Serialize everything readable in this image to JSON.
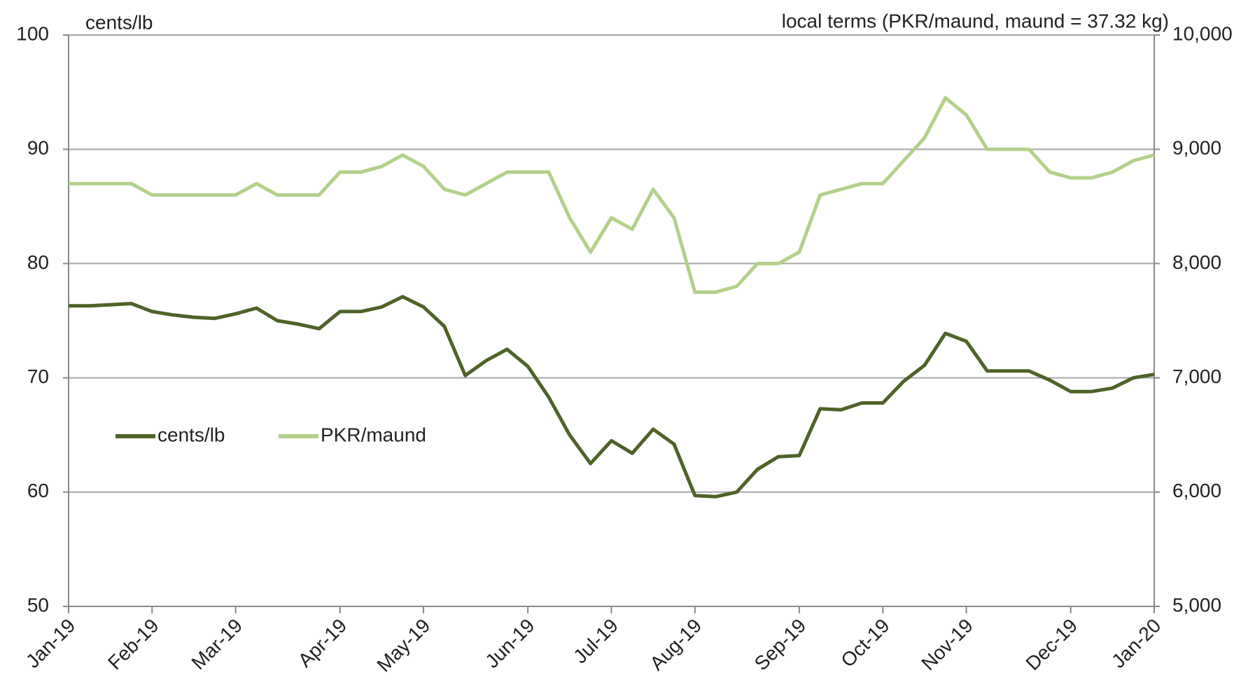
{
  "chart_data": {
    "type": "line",
    "left_axis_title": "cents/lb",
    "right_axis_title": "local terms (PKR/maund, maund = 37.32 kg)",
    "categories": [
      "Jan-19",
      null,
      null,
      null,
      "Feb-19",
      null,
      null,
      null,
      "Mar-19",
      null,
      null,
      null,
      null,
      "Apr-19",
      null,
      null,
      null,
      "May-19",
      null,
      null,
      null,
      null,
      "Jun-19",
      null,
      null,
      null,
      "Jul-19",
      null,
      null,
      null,
      "Aug-19",
      null,
      null,
      null,
      null,
      "Sep-19",
      null,
      null,
      null,
      "Oct-19",
      null,
      null,
      null,
      "Nov-19",
      null,
      null,
      null,
      null,
      "Dec-19",
      null,
      null,
      null,
      "Jan-20"
    ],
    "series": [
      {
        "name": "cents/lb",
        "color": "#4f6228",
        "axis": "y",
        "values": [
          76.3,
          76.3,
          76.4,
          76.5,
          75.8,
          75.5,
          75.3,
          75.2,
          75.6,
          76.1,
          75.0,
          74.7,
          74.3,
          75.8,
          75.8,
          76.2,
          77.1,
          76.2,
          74.5,
          70.2,
          71.5,
          72.5,
          71.0,
          68.3,
          65.0,
          62.5,
          64.5,
          63.4,
          65.5,
          64.2,
          59.7,
          59.6,
          60.0,
          62.0,
          63.1,
          63.2,
          67.3,
          67.2,
          67.8,
          67.8,
          69.7,
          71.1,
          73.9,
          73.2,
          70.6,
          70.6,
          70.6,
          69.8,
          68.8,
          68.8,
          69.1,
          70.0,
          70.3
        ]
      },
      {
        "name": "PKR/maund",
        "color": "#b3d08a",
        "axis": "y2",
        "values": [
          8700,
          8700,
          8700,
          8700,
          8600,
          8600,
          8600,
          8600,
          8600,
          8700,
          8600,
          8600,
          8600,
          8800,
          8800,
          8850,
          8950,
          8850,
          8650,
          8600,
          8700,
          8800,
          8800,
          8800,
          8400,
          8100,
          8400,
          8300,
          8650,
          8400,
          7750,
          7750,
          7800,
          8000,
          8000,
          8100,
          8600,
          8650,
          8700,
          8700,
          8900,
          9100,
          9450,
          9300,
          9000,
          9000,
          9000,
          8800,
          8750,
          8750,
          8800,
          8900,
          8950
        ]
      }
    ],
    "ylim": [
      50,
      100
    ],
    "yticks": [
      50,
      60,
      70,
      80,
      90,
      100
    ],
    "y2lim": [
      5000,
      10000
    ],
    "y2ticks": [
      {
        "value": 5000,
        "label": "5,000"
      },
      {
        "value": 6000,
        "label": "6,000"
      },
      {
        "value": 7000,
        "label": "7,000"
      },
      {
        "value": 8000,
        "label": "8,000"
      },
      {
        "value": 9000,
        "label": "9,000"
      },
      {
        "value": 10000,
        "label": "10,000"
      }
    ],
    "grid": true,
    "legend": "left"
  }
}
